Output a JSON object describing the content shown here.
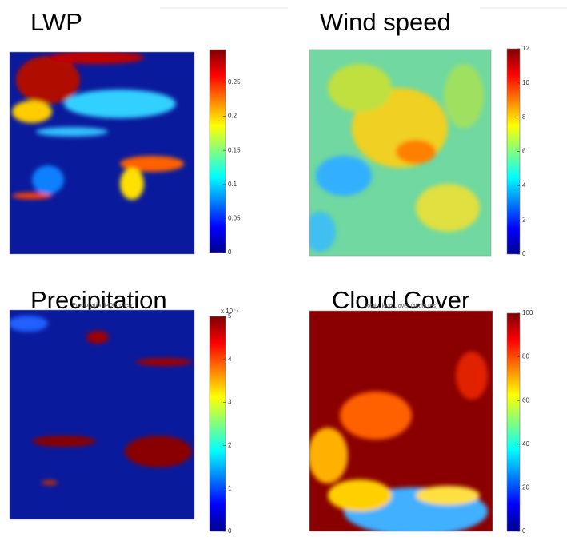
{
  "chart_data": [
    {
      "type": "heatmap",
      "title": "LWP",
      "zlim": [
        0,
        0.298
      ],
      "zticks": [
        0,
        0.05,
        0.1,
        0.15,
        0.2,
        0.25
      ]
    },
    {
      "type": "heatmap",
      "title": "Wind speed",
      "zlim": [
        0,
        12
      ],
      "zticks": [
        0,
        2,
        4,
        6,
        8,
        10,
        12
      ]
    },
    {
      "type": "heatmap",
      "title": "Precipitation",
      "subtitle": "Precipitation (400m res)",
      "zlim": [
        0,
        5
      ],
      "zticks": [
        0,
        1,
        2,
        3,
        4,
        5
      ],
      "colorbar_exponent": "x 10⁻⁴"
    },
    {
      "type": "heatmap",
      "title": "Cloud Cover",
      "subtitle": "Total Cloud Cover (400m res)",
      "zlim": [
        0,
        100
      ],
      "zticks": [
        0,
        20,
        40,
        60,
        80,
        100
      ]
    }
  ]
}
